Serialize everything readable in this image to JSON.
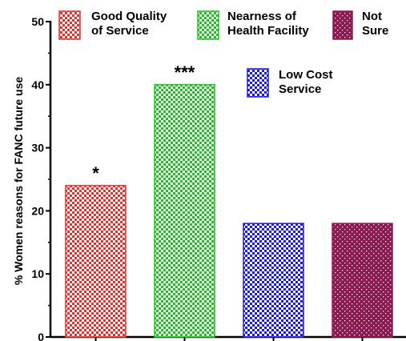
{
  "chart_data": {
    "type": "bar",
    "ylabel": "% Women reasons  for FANC future use",
    "xlabel": "",
    "ylim": [
      0,
      50
    ],
    "yticks": [
      0,
      10,
      20,
      30,
      40,
      50
    ],
    "grid": false,
    "series": [
      {
        "name": "Good Quality of Service",
        "legend_lines": [
          "Good Quality",
          "of Service"
        ],
        "value": 24,
        "color": "#e8302c",
        "pattern": "check",
        "annotation": "*"
      },
      {
        "name": "Nearness of Health Facility",
        "legend_lines": [
          "Nearness of",
          "Health Facility"
        ],
        "value": 40,
        "color": "#1fc31f",
        "pattern": "check",
        "annotation": "***"
      },
      {
        "name": "Low Cost Service",
        "legend_lines": [
          "Low Cost",
          "Service"
        ],
        "value": 18,
        "color": "#1a1ae6",
        "pattern": "check",
        "annotation": ""
      },
      {
        "name": "Not Sure",
        "legend_lines": [
          "Not",
          "Sure"
        ],
        "value": 18,
        "color": "#8b1a52",
        "pattern": "dots",
        "annotation": ""
      }
    ]
  }
}
